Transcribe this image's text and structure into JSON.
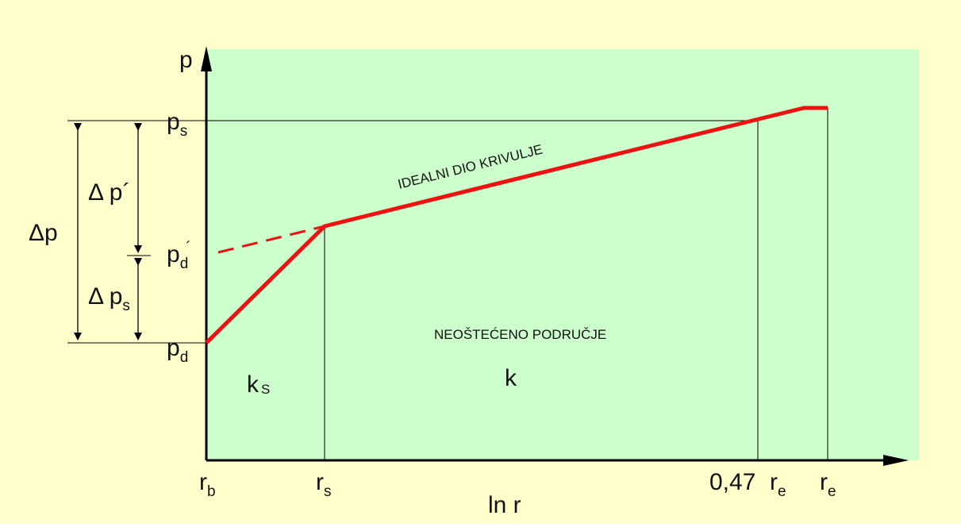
{
  "colors": {
    "outer_background": "#ffffcc",
    "plot_background": "#ccffcc",
    "curve": "#ee1111",
    "lines": "#000000"
  },
  "labels": {
    "y_axis": "p",
    "x_axis": "ln r",
    "ps_main": "p",
    "ps_sub": "s",
    "pd_prime_main": "p",
    "pd_prime_sub": "d",
    "pd_prime_mark": "´",
    "pd_main": "p",
    "pd_sub": "d",
    "delta_p": "Δp",
    "delta_p_prime": "Δ p´",
    "delta_ps_main": "Δ p",
    "delta_ps_sub": "s",
    "rb_main": "r",
    "rb_sub": "b",
    "rs_main": "r",
    "rs_sub": "s",
    "tick_047": "0,47",
    "re1_main": "r",
    "re1_sub": "e",
    "re2_main": "r",
    "re2_sub": "e",
    "ideal_curve": "IDEALNI DIO KRIVULJE",
    "undamaged_zone": "NEOŠTEĆENO PODRUČJE",
    "ks_main": "k",
    "ks_sub": "S",
    "k": "k"
  }
}
